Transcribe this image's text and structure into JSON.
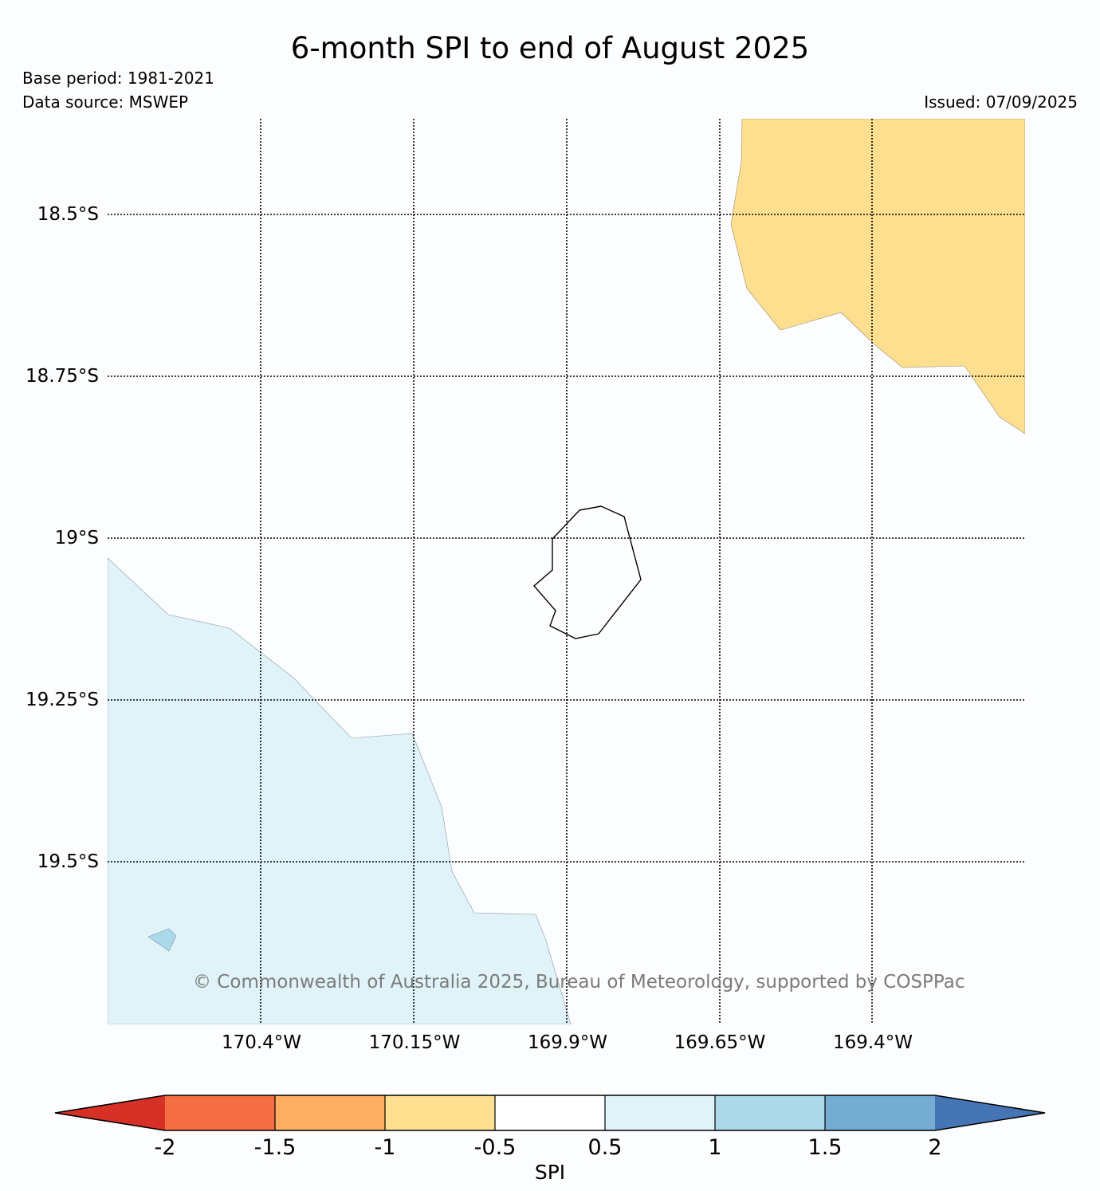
{
  "title": "6-month SPI to end of August 2025",
  "base_period": "Base period: 1981-2021",
  "data_source": "Data source: MSWEP",
  "issued": "Issued: 07/09/2025",
  "copyright": "© Commonwealth of Australia 2025, Bureau of Meteorology, supported by COSPPac",
  "map": {
    "lat_labels": [
      "18.5°S",
      "18.75°S",
      "19°S",
      "19.25°S",
      "19.5°S"
    ],
    "lon_labels": [
      "170.4°W",
      "170.15°W",
      "169.9°W",
      "169.65°W",
      "169.4°W"
    ],
    "regions": [
      {
        "name": "dry-region-northeast",
        "category": "-1 to -0.5",
        "color": "#fedf8f"
      },
      {
        "name": "wet-region-southwest",
        "category": "0.5 to 1",
        "color": "#e0f3f8"
      },
      {
        "name": "wet-patch-small",
        "category": "1 to 1.5",
        "color": "#abd9e9"
      }
    ],
    "island": "Niue coastline"
  },
  "colorbar": {
    "label": "SPI",
    "ticks": [
      "-2",
      "-1.5",
      "-1",
      "-0.5",
      "0.5",
      "1",
      "1.5",
      "2"
    ],
    "colors": {
      "below_min": "#d73027",
      "bins": [
        "#f46d43",
        "#fdae61",
        "#fee090",
        "#ffffff",
        "#e0f3f8",
        "#abd9e9",
        "#74add1"
      ],
      "above_max": "#4575b4"
    }
  }
}
